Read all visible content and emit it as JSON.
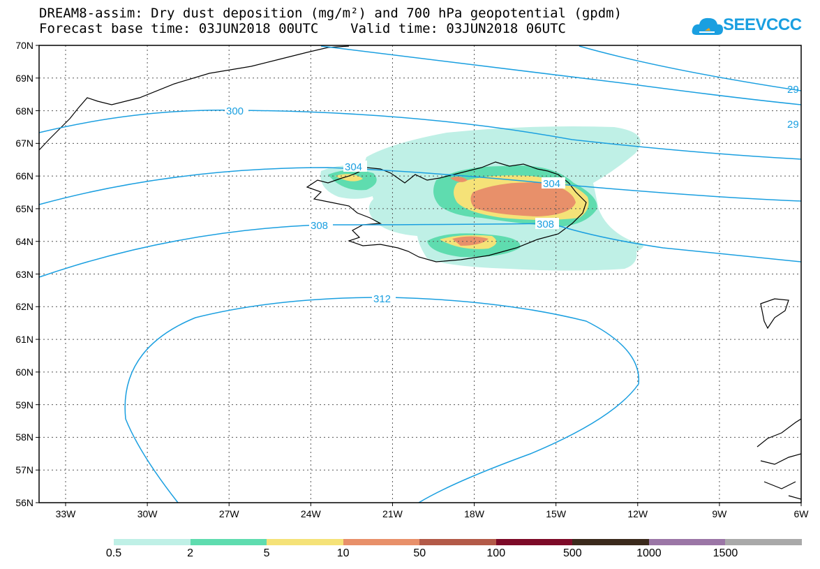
{
  "title": {
    "line1": "DREAM8-assim: Dry dust deposition (mg/m²) and 700 hPa geopotential (gpdm)",
    "line2": "Forecast base time: 03JUN2018 00UTC    Valid time: 03JUN2018 06UTC"
  },
  "logo": {
    "text": "SEEVCCC",
    "icon": "cloud-icon",
    "color": "#1a9fe0"
  },
  "map": {
    "lat_labels": [
      "70N",
      "69N",
      "68N",
      "67N",
      "66N",
      "65N",
      "64N",
      "63N",
      "62N",
      "61N",
      "60N",
      "59N",
      "58N",
      "57N",
      "56N"
    ],
    "lon_labels": [
      "33W",
      "30W",
      "27W",
      "24W",
      "21W",
      "18W",
      "15W",
      "12W",
      "9W",
      "6W"
    ],
    "contour_color": "#1a9fe0",
    "contour_labels": [
      "300",
      "304",
      "304",
      "308",
      "308",
      "312",
      "29",
      "29"
    ]
  },
  "legend": {
    "labels": [
      "0.5",
      "2",
      "5",
      "10",
      "50",
      "100",
      "500",
      "1000",
      "1500"
    ],
    "colors": [
      "#bff0e6",
      "#5fdcaf",
      "#f5e278",
      "#e8906a",
      "#b35a48",
      "#7d0a28",
      "#3b2a1c",
      "#9b76a6",
      "#a9a9a9"
    ]
  }
}
